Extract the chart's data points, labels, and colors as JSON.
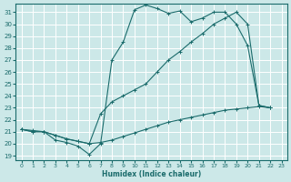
{
  "xlabel": "Humidex (Indice chaleur)",
  "bg_color": "#cce8e8",
  "line_color": "#1a6b6b",
  "grid_color": "#ffffff",
  "xlim_min": -0.5,
  "xlim_max": 23.5,
  "ylim_min": 18.6,
  "ylim_max": 31.7,
  "xticks": [
    0,
    1,
    2,
    3,
    4,
    5,
    6,
    7,
    8,
    9,
    10,
    11,
    12,
    13,
    14,
    15,
    16,
    17,
    18,
    19,
    20,
    21,
    22,
    23
  ],
  "yticks": [
    19,
    20,
    21,
    22,
    23,
    24,
    25,
    26,
    27,
    28,
    29,
    30,
    31
  ],
  "curve1_x": [
    0,
    1,
    2,
    3,
    4,
    5,
    6,
    7,
    8,
    9,
    10,
    11,
    12,
    13,
    14,
    15,
    16,
    17,
    18,
    19,
    20,
    21,
    22
  ],
  "curve1_y": [
    21.2,
    21.1,
    21.0,
    20.3,
    20.1,
    19.8,
    19.1,
    20.0,
    27.0,
    28.5,
    31.2,
    31.6,
    31.3,
    30.9,
    31.1,
    30.2,
    30.5,
    31.0,
    31.0,
    30.0,
    28.2,
    23.2,
    23.0
  ],
  "curve2_x": [
    0,
    1,
    2,
    3,
    4,
    5,
    6,
    7,
    8,
    9,
    10,
    11,
    12,
    13,
    14,
    15,
    16,
    17,
    18,
    19,
    20,
    21,
    22
  ],
  "curve2_y": [
    21.2,
    21.0,
    21.0,
    20.7,
    20.4,
    20.2,
    20.0,
    22.5,
    23.5,
    24.0,
    24.5,
    25.0,
    26.0,
    27.0,
    27.7,
    28.5,
    29.2,
    30.0,
    30.5,
    31.0,
    30.0,
    23.2,
    23.0
  ],
  "curve3_x": [
    0,
    1,
    2,
    3,
    4,
    5,
    6,
    7,
    8,
    9,
    10,
    11,
    12,
    13,
    14,
    15,
    16,
    17,
    18,
    19,
    20,
    21,
    22
  ],
  "curve3_y": [
    21.2,
    21.0,
    21.0,
    20.7,
    20.4,
    20.2,
    20.0,
    20.1,
    20.3,
    20.6,
    20.9,
    21.2,
    21.5,
    21.8,
    22.0,
    22.2,
    22.4,
    22.6,
    22.8,
    22.9,
    23.0,
    23.1,
    23.0
  ]
}
